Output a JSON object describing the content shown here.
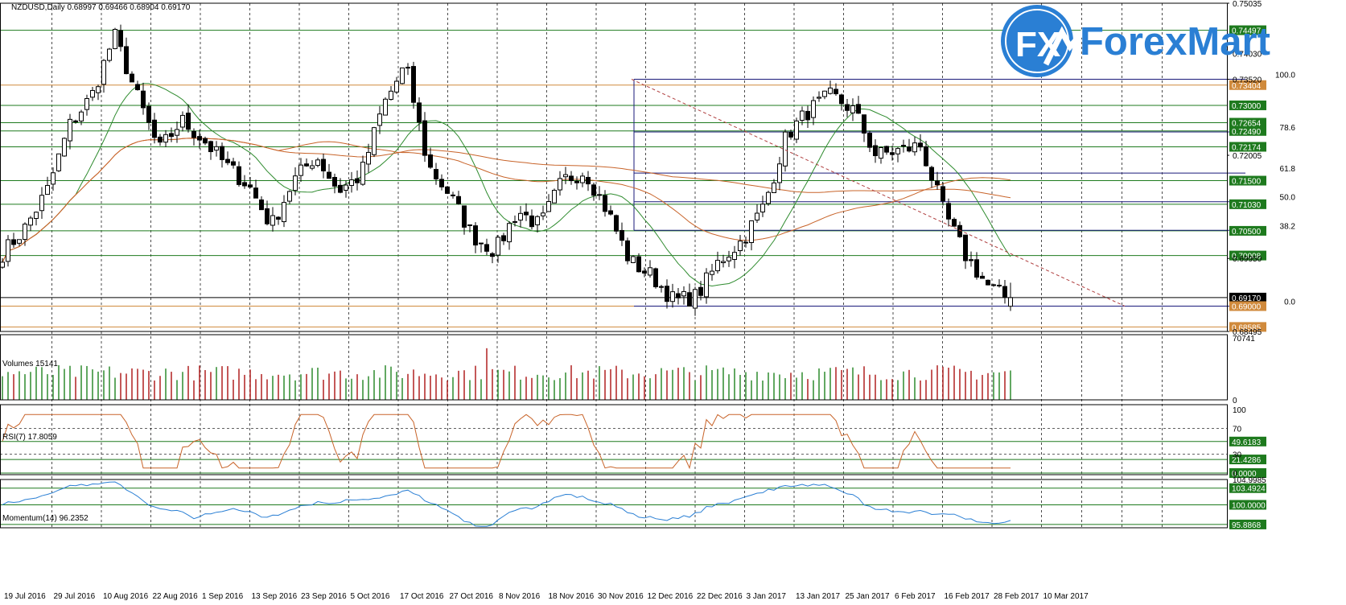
{
  "header": {
    "symbol_line": "NZDUSD,Daily  0.68997 0.69466 0.68904 0.69170"
  },
  "logo": {
    "mark": "FX",
    "name": "ForexMart",
    "colors": {
      "blue": "#2a7fd4",
      "dark": "#1a5ea8"
    }
  },
  "colors": {
    "bull": "#ffffff",
    "bear": "#000000",
    "ma_green": "#2e8b2e",
    "ma_orange": "#c8642a",
    "hline_green": "#1e7a1e",
    "hline_orange": "#d08a3c",
    "fib_navy": "#1a1a7a",
    "trend_red": "#b04040",
    "rsi": "#c8642a",
    "momentum": "#2a7fd4",
    "vol_up": "#2e8b2e",
    "vol_down": "#b02020"
  },
  "chart_data": {
    "type": "candlestick",
    "price_axis": {
      "range": [
        0.68495,
        0.75035
      ],
      "ticks": [
        "0.75035",
        "0.74030",
        "0.73520",
        "0.72005",
        "0.69950",
        "0.68495"
      ]
    },
    "x_labels": [
      "19 Jul 2016",
      "29 Jul 2016",
      "10 Aug 2016",
      "22 Aug 2016",
      "1 Sep 2016",
      "13 Sep 2016",
      "23 Sep 2016",
      "5 Oct 2016",
      "17 Oct 2016",
      "27 Oct 2016",
      "8 Nov 2016",
      "18 Nov 2016",
      "30 Nov 2016",
      "12 Dec 2016",
      "22 Dec 2016",
      "3 Jan 2017",
      "13 Jan 2017",
      "25 Jan 2017",
      "6 Feb 2017",
      "16 Feb 2017",
      "28 Feb 2017",
      "10 Mar 2017"
    ],
    "keypoints": [
      0.7005,
      0.7055,
      0.713,
      0.726,
      0.732,
      0.744,
      0.732,
      0.721,
      0.727,
      0.723,
      0.718,
      0.714,
      0.706,
      0.715,
      0.72,
      0.713,
      0.716,
      0.73,
      0.738,
      0.718,
      0.712,
      0.704,
      0.701,
      0.709,
      0.706,
      0.715,
      0.717,
      0.709,
      0.699,
      0.696,
      0.691,
      0.692,
      0.699,
      0.703,
      0.71,
      0.724,
      0.729,
      0.732,
      0.729,
      0.72,
      0.721,
      0.722,
      0.709,
      0.7,
      0.694,
      0.6912
    ],
    "horizontal_levels": [
      {
        "price": 0.74497,
        "label": "0.74497",
        "color": "#1e7a1e"
      },
      {
        "price": 0.73404,
        "label": "0.73404",
        "color": "#d08a3c"
      },
      {
        "price": 0.73,
        "label": "0.73000",
        "color": "#1e7a1e"
      },
      {
        "price": 0.72654,
        "label": "0.72654",
        "color": "#1e7a1e"
      },
      {
        "price": 0.7249,
        "label": "0.72490",
        "color": "#1e7a1e"
      },
      {
        "price": 0.72174,
        "label": "0.72174",
        "color": "#1e7a1e"
      },
      {
        "price": 0.715,
        "label": "0.71500",
        "color": "#1e7a1e"
      },
      {
        "price": 0.7103,
        "label": "0.71030",
        "color": "#1e7a1e"
      },
      {
        "price": 0.705,
        "label": "0.70500",
        "color": "#1e7a1e"
      },
      {
        "price": 0.70008,
        "label": "0.70008",
        "color": "#1e7a1e"
      },
      {
        "price": 0.6917,
        "label": "0.69170",
        "color": "#000000"
      },
      {
        "price": 0.69,
        "label": "0.69000",
        "color": "#d08a3c"
      },
      {
        "price": 0.68585,
        "label": "0.68585",
        "color": "#d08a3c"
      }
    ],
    "fibonacci": [
      {
        "level": "100.0",
        "price": 0.7352
      },
      {
        "level": "78.6",
        "price": 0.7247
      },
      {
        "level": "61.8",
        "price": 0.7165
      },
      {
        "level": "50.0",
        "price": 0.7108
      },
      {
        "level": "38.2",
        "price": 0.7051
      },
      {
        "level": "0.0",
        "price": 0.69
      }
    ],
    "volumes": {
      "label": "Volumes 15141",
      "axis_ticks": [
        "70741",
        "0"
      ],
      "range": [
        0,
        70741
      ]
    },
    "rsi": {
      "label": "RSI(7) 17.8059",
      "axis_ticks": [
        "100",
        "70",
        "30",
        "0"
      ],
      "range": [
        0,
        100
      ],
      "levels": [
        {
          "value": 49.6183,
          "label": "49.6183"
        },
        {
          "value": 21.4286,
          "label": "21.4286"
        },
        {
          "value": 0.0,
          "label": "0.0000"
        }
      ]
    },
    "momentum": {
      "label": "Momentum(14) 96.2352",
      "axis_ticks": [
        "104.9985"
      ],
      "range": [
        95.2,
        105.3
      ],
      "levels": [
        {
          "value": 103.4924,
          "label": "103.4924"
        },
        {
          "value": 100.0,
          "label": "100.0000"
        },
        {
          "value": 95.8868,
          "label": "95.8868"
        }
      ]
    }
  }
}
